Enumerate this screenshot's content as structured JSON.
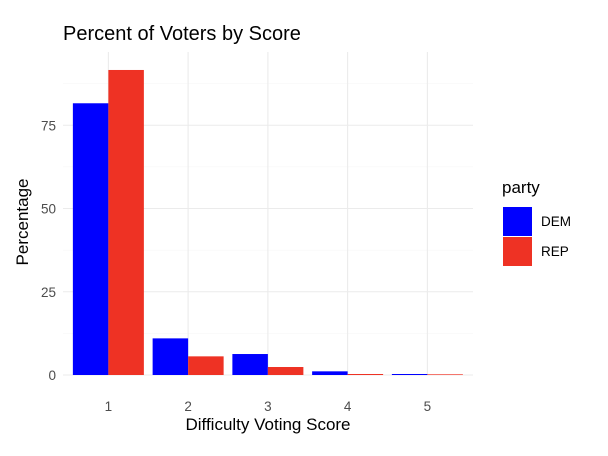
{
  "chart_data": {
    "type": "bar",
    "title": "Percent of Voters by Score",
    "xlabel": "Difficulty Voting Score",
    "ylabel": "Percentage",
    "categories": [
      "1",
      "2",
      "3",
      "4",
      "5"
    ],
    "series": [
      {
        "name": "DEM",
        "color": "#0000ff",
        "values": [
          81.6,
          11.0,
          6.3,
          1.1,
          0.3
        ]
      },
      {
        "name": "REP",
        "color": "#ee3224",
        "values": [
          91.6,
          5.6,
          2.4,
          0.3,
          0.2
        ]
      }
    ],
    "yticks": [
      0,
      25,
      50,
      75
    ],
    "ylim": [
      0,
      92
    ],
    "legend": {
      "title": "party",
      "position": "right"
    },
    "grid": true
  }
}
